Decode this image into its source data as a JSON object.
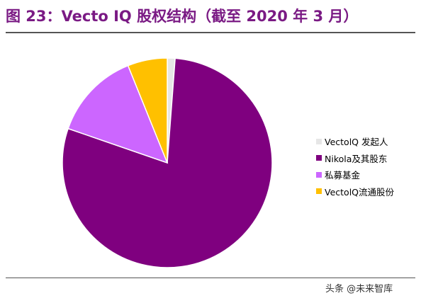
{
  "title": "图 23：Vecto IQ 股权结构（截至 2020 年 3 月）",
  "watermark": "头条 @未来智库",
  "colors": {
    "title": "#7a1a84",
    "founders": "#e6e6e6",
    "nikola": "#7f007f",
    "private_fund": "#cc66ff",
    "float": "#ffc000"
  },
  "chart_data": {
    "type": "pie",
    "title": "",
    "slices": [
      {
        "label": "VectolQ 发起人",
        "value": 1.2,
        "color": "#e6e6e6"
      },
      {
        "label": "Nikola及其股东",
        "value": 79.1,
        "color": "#7f007f"
      },
      {
        "label": "私募基金",
        "value": 13.6,
        "color": "#cc66ff"
      },
      {
        "label": "VectolQ流通股份",
        "value": 6.1,
        "color": "#ffc000"
      }
    ],
    "start_angle": "12 o'clock, clockwise",
    "legend_position": "right",
    "data_labels": false
  }
}
